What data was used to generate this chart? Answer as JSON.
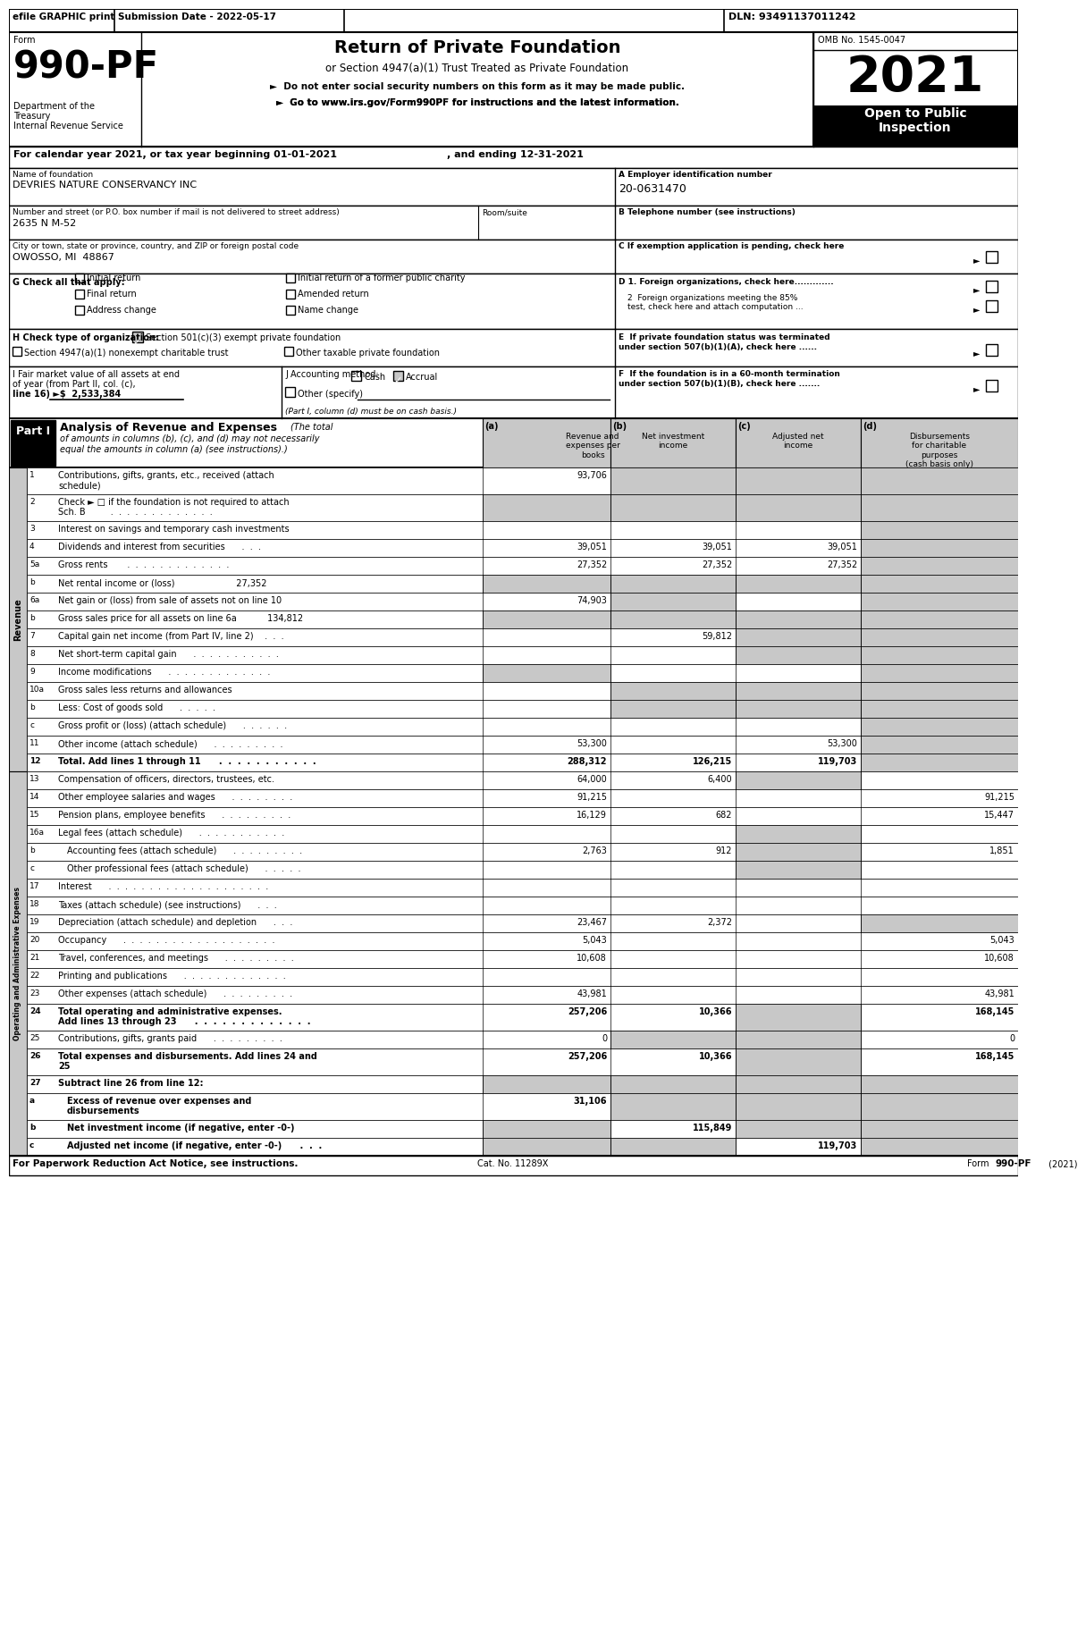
{
  "header_bar": {
    "efile": "efile GRAPHIC print",
    "submission": "Submission Date - 2022-05-17",
    "dln": "DLN: 93491137011242"
  },
  "form_number": "990-PF",
  "omb": "OMB No. 1545-0047",
  "title": "Return of Private Foundation",
  "subtitle": "or Section 4947(a)(1) Trust Treated as Private Foundation",
  "bullet1": "►  Do not enter social security numbers on this form as it may be made public.",
  "bullet2": "►  Go to www.irs.gov/Form990PF for instructions and the latest information.",
  "year_box": "2021",
  "open_to_public": "Open to Public\nInspection",
  "cal_year_line": "For calendar year 2021, or tax year beginning 01-01-2021",
  "cal_year_end": ", and ending 12-31-2021",
  "name_label": "Name of foundation",
  "name_value": "DEVRIES NATURE CONSERVANCY INC",
  "ein_label": "A Employer identification number",
  "ein_value": "20-0631470",
  "addr_label": "Number and street (or P.O. box number if mail is not delivered to street address)",
  "addr_value": "2635 N M-52",
  "room_label": "Room/suite",
  "phone_label": "B Telephone number (see instructions)",
  "city_label": "City or town, state or province, country, and ZIP or foreign postal code",
  "city_value": "OWOSSO, MI  48867",
  "exempt_label": "C If exemption application is pending, check here",
  "d1_label": "D 1. Foreign organizations, check here.............",
  "d2a_label": "2  Foreign organizations meeting the 85%",
  "d2b_label": "test, check here and attach computation ...",
  "e1_label": "E  If private foundation status was terminated",
  "e2_label": "under section 507(b)(1)(A), check here ......",
  "f1_label": "F  If the foundation is in a 60-month termination",
  "f2_label": "under section 507(b)(1)(B), check here .......",
  "i_line1": "I Fair market value of all assets at end",
  "i_line2": "of year (from Part II, col. (c),",
  "i_line3": "line 16) ►$  2,533,384",
  "j_label": "J Accounting method:",
  "j_cash": "Cash",
  "j_accrual": "Accrual",
  "j_other": "Other (specify)",
  "j_note": "(Part I, column (d) must be on cash basis.)",
  "col_a": "Revenue and\nexpenses per\nbooks",
  "col_b": "Net investment\nincome",
  "col_c": "Adjusted net\nincome",
  "col_d": "Disbursements\nfor charitable\npurposes\n(cash basis only)",
  "footer_left": "For Paperwork Reduction Act Notice, see instructions.",
  "footer_center": "Cat. No. 11289X",
  "footer_right": "Form 990-PF (2021)",
  "gray": "#c8c8c8",
  "rows": [
    {
      "num": "1",
      "label": "Contributions, gifts, grants, etc., received (attach\nschedule)",
      "a": "93,706",
      "b": "",
      "c": "",
      "d": "",
      "sb": true,
      "sc": true,
      "sd": true,
      "tall": true
    },
    {
      "num": "2",
      "label": "Check ► □ if the foundation is not required to attach\nSch. B         .  .  .  .  .  .  .  .  .  .  .  .  .",
      "a": "",
      "b": "",
      "c": "",
      "d": "",
      "sa": true,
      "sb": true,
      "sc": true,
      "sd": true,
      "tall": true
    },
    {
      "num": "3",
      "label": "Interest on savings and temporary cash investments",
      "a": "",
      "b": "",
      "c": "",
      "d": "",
      "sd": true
    },
    {
      "num": "4",
      "label": "Dividends and interest from securities      .  .  .",
      "a": "39,051",
      "b": "39,051",
      "c": "39,051",
      "d": "",
      "sd": true
    },
    {
      "num": "5a",
      "label": "Gross rents       .  .  .  .  .  .  .  .  .  .  .  .  .",
      "a": "27,352",
      "b": "27,352",
      "c": "27,352",
      "d": "",
      "sd": true
    },
    {
      "num": "b",
      "label": "Net rental income or (loss)                      27,352",
      "a": "",
      "b": "",
      "c": "",
      "d": "",
      "sa": true,
      "sb": true,
      "sc": true,
      "sd": true
    },
    {
      "num": "6a",
      "label": "Net gain or (loss) from sale of assets not on line 10",
      "a": "74,903",
      "b": "",
      "c": "",
      "d": "",
      "sb": true,
      "sd": true
    },
    {
      "num": "b",
      "label": "Gross sales price for all assets on line 6a           134,812",
      "a": "",
      "b": "",
      "c": "",
      "d": "",
      "sa": true,
      "sb": true,
      "sc": true,
      "sd": true
    },
    {
      "num": "7",
      "label": "Capital gain net income (from Part IV, line 2)    .  .  .",
      "a": "",
      "b": "59,812",
      "c": "",
      "d": "",
      "sc": true,
      "sd": true
    },
    {
      "num": "8",
      "label": "Net short-term capital gain      .  .  .  .  .  .  .  .  .  .  .",
      "a": "",
      "b": "",
      "c": "",
      "d": "",
      "sc": true,
      "sd": true
    },
    {
      "num": "9",
      "label": "Income modifications      .  .  .  .  .  .  .  .  .  .  .  .  .",
      "a": "",
      "b": "",
      "c": "",
      "d": "",
      "sa": true,
      "sd": true
    },
    {
      "num": "10a",
      "label": "Gross sales less returns and allowances",
      "a": "",
      "b": "",
      "c": "",
      "d": "",
      "sb": true,
      "sc": true,
      "sd": true
    },
    {
      "num": "b",
      "label": "Less: Cost of goods sold      .  .  .  .  .",
      "a": "",
      "b": "",
      "c": "",
      "d": "",
      "sb": true,
      "sc": true,
      "sd": true
    },
    {
      "num": "c",
      "label": "Gross profit or (loss) (attach schedule)      .  .  .  .  .  .",
      "a": "",
      "b": "",
      "c": "",
      "d": "",
      "sd": true
    },
    {
      "num": "11",
      "label": "Other income (attach schedule)      .  .  .  .  .  .  .  .  .",
      "a": "53,300",
      "b": "",
      "c": "53,300",
      "d": "",
      "sd": true
    },
    {
      "num": "12",
      "label": "Total. Add lines 1 through 11      .  .  .  .  .  .  .  .  .  .  .",
      "a": "288,312",
      "b": "126,215",
      "c": "119,703",
      "d": "",
      "bold": true,
      "sd": true
    },
    {
      "num": "13",
      "label": "Compensation of officers, directors, trustees, etc.",
      "a": "64,000",
      "b": "6,400",
      "c": "",
      "d": "",
      "sc": true
    },
    {
      "num": "14",
      "label": "Other employee salaries and wages      .  .  .  .  .  .  .  .",
      "a": "91,215",
      "b": "",
      "c": "",
      "d": "91,215"
    },
    {
      "num": "15",
      "label": "Pension plans, employee benefits      .  .  .  .  .  .  .  .  .",
      "a": "16,129",
      "b": "682",
      "c": "",
      "d": "15,447"
    },
    {
      "num": "16a",
      "label": "Legal fees (attach schedule)      .  .  .  .  .  .  .  .  .  .  .",
      "a": "",
      "b": "",
      "c": "",
      "d": "",
      "sc": true
    },
    {
      "num": "b",
      "label": "Accounting fees (attach schedule)      .  .  .  .  .  .  .  .  .",
      "a": "2,763",
      "b": "912",
      "c": "",
      "d": "1,851",
      "sc": true
    },
    {
      "num": "c",
      "label": "Other professional fees (attach schedule)      .  .  .  .  .",
      "a": "",
      "b": "",
      "c": "",
      "d": "",
      "sc": true
    },
    {
      "num": "17",
      "label": "Interest      .  .  .  .  .  .  .  .  .  .  .  .  .  .  .  .  .  .  .  .",
      "a": "",
      "b": "",
      "c": "",
      "d": ""
    },
    {
      "num": "18",
      "label": "Taxes (attach schedule) (see instructions)      .  .  .",
      "a": "",
      "b": "",
      "c": "",
      "d": ""
    },
    {
      "num": "19",
      "label": "Depreciation (attach schedule) and depletion      .  .  .",
      "a": "23,467",
      "b": "2,372",
      "c": "",
      "d": "",
      "sd": true
    },
    {
      "num": "20",
      "label": "Occupancy      .  .  .  .  .  .  .  .  .  .  .  .  .  .  .  .  .  .  .",
      "a": "5,043",
      "b": "",
      "c": "",
      "d": "5,043"
    },
    {
      "num": "21",
      "label": "Travel, conferences, and meetings      .  .  .  .  .  .  .  .  .",
      "a": "10,608",
      "b": "",
      "c": "",
      "d": "10,608"
    },
    {
      "num": "22",
      "label": "Printing and publications      .  .  .  .  .  .  .  .  .  .  .  .  .",
      "a": "",
      "b": "",
      "c": "",
      "d": ""
    },
    {
      "num": "23",
      "label": "Other expenses (attach schedule)      .  .  .  .  .  .  .  .  .",
      "a": "43,981",
      "b": "",
      "c": "",
      "d": "43,981"
    },
    {
      "num": "24",
      "label": "Total operating and administrative expenses.\nAdd lines 13 through 23      .  .  .  .  .  .  .  .  .  .  .  .  .",
      "a": "257,206",
      "b": "10,366",
      "c": "",
      "d": "168,145",
      "bold": true,
      "sc": true,
      "tall": true
    },
    {
      "num": "25",
      "label": "Contributions, gifts, grants paid      .  .  .  .  .  .  .  .  .",
      "a": "0",
      "b": "",
      "c": "",
      "d": "0",
      "sb": true,
      "sc": true
    },
    {
      "num": "26",
      "label": "Total expenses and disbursements. Add lines 24 and\n25",
      "a": "257,206",
      "b": "10,366",
      "c": "",
      "d": "168,145",
      "bold": true,
      "sc": true,
      "tall": true
    },
    {
      "num": "27",
      "label": "Subtract line 26 from line 12:",
      "a": "",
      "b": "",
      "c": "",
      "d": "",
      "bold": true,
      "sa": true,
      "sb": true,
      "sc": true,
      "sd": true
    },
    {
      "num": "a",
      "label": "Excess of revenue over expenses and\ndisbursements",
      "a": "31,106",
      "b": "",
      "c": "",
      "d": "",
      "bold": true,
      "sb": true,
      "sc": true,
      "sd": true,
      "tall": true
    },
    {
      "num": "b",
      "label": "Net investment income (if negative, enter -0-)",
      "a": "",
      "b": "115,849",
      "c": "",
      "d": "",
      "bold": true,
      "sa": true,
      "sc": true,
      "sd": true
    },
    {
      "num": "c",
      "label": "Adjusted net income (if negative, enter -0-)      .  .  .",
      "a": "",
      "b": "",
      "c": "119,703",
      "d": "",
      "bold": true,
      "sa": true,
      "sb": true,
      "sd": true
    }
  ]
}
